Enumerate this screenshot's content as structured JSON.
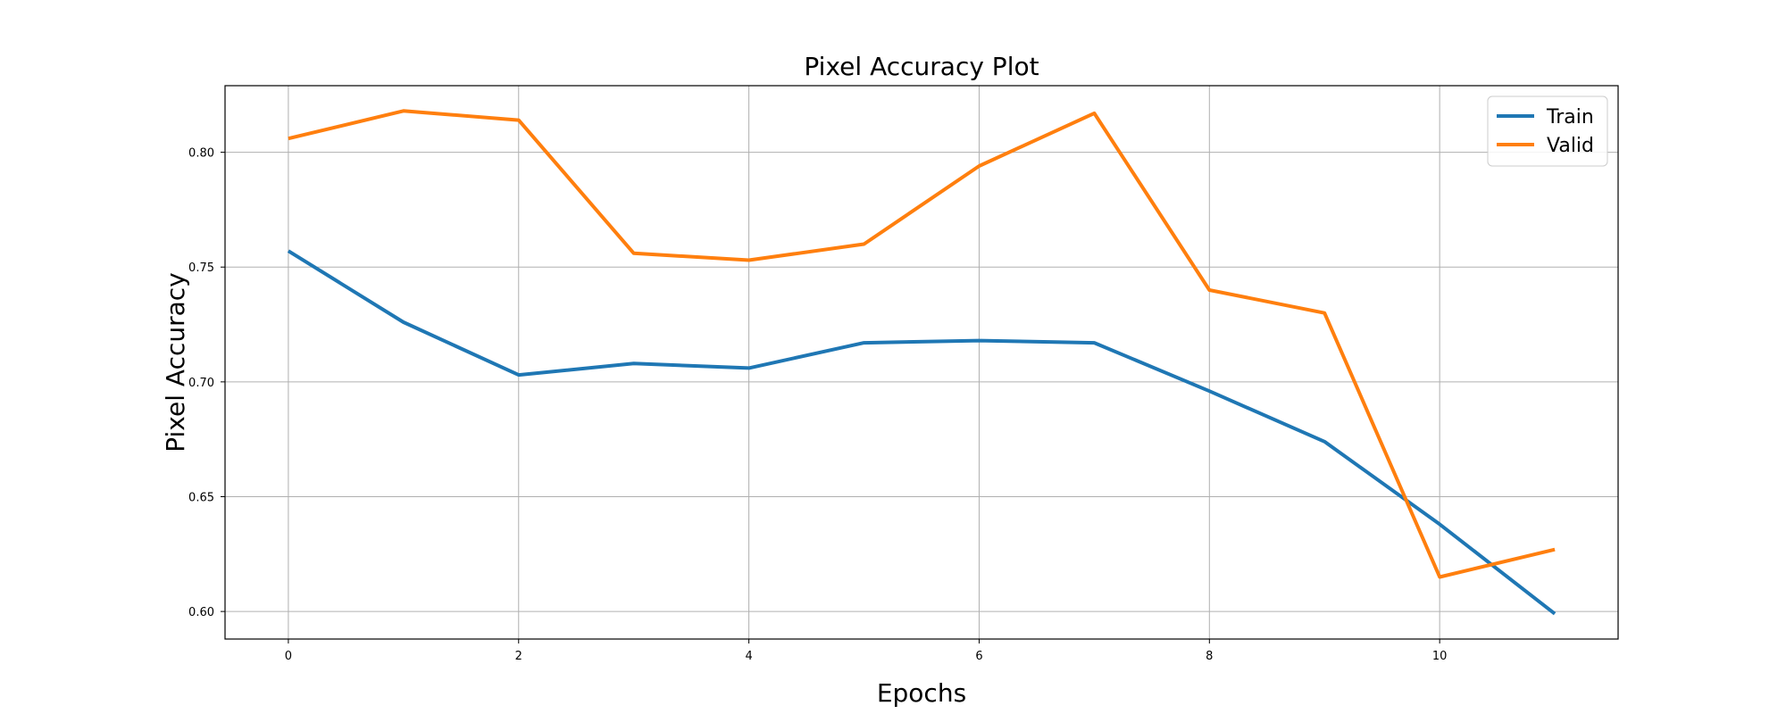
{
  "chart_data": {
    "type": "line",
    "title": "Pixel Accuracy Plot",
    "xlabel": "Epochs",
    "ylabel": "Pixel Accuracy",
    "x": [
      0,
      1,
      2,
      3,
      4,
      5,
      6,
      7,
      8,
      9,
      10,
      11
    ],
    "xlim": [
      -0.55,
      11.55
    ],
    "ylim": [
      0.588,
      0.829
    ],
    "xticks": [
      0,
      2,
      4,
      6,
      8,
      10
    ],
    "yticks": [
      0.6,
      0.65,
      0.7,
      0.75,
      0.8
    ],
    "xtick_labels": [
      "0",
      "2",
      "4",
      "6",
      "8",
      "10"
    ],
    "ytick_labels": [
      "0.60",
      "0.65",
      "0.70",
      "0.75",
      "0.80"
    ],
    "grid": true,
    "legend_position": "top-right",
    "series": [
      {
        "name": "Train",
        "color": "#1f77b4",
        "values": [
          0.757,
          0.726,
          0.703,
          0.708,
          0.706,
          0.717,
          0.718,
          0.717,
          0.696,
          0.674,
          0.638,
          0.599
        ]
      },
      {
        "name": "Valid",
        "color": "#ff7f0e",
        "values": [
          0.806,
          0.818,
          0.814,
          0.756,
          0.753,
          0.76,
          0.794,
          0.817,
          0.74,
          0.73,
          0.615,
          0.627
        ]
      }
    ]
  }
}
